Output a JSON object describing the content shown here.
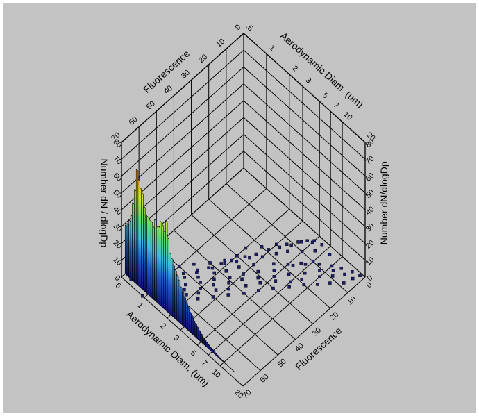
{
  "chart_data": {
    "type": "3d-bar-and-scatter",
    "axes": {
      "fluorescence": {
        "label": "Fluorescence",
        "ticks": [
          "0",
          "10",
          "20",
          "30",
          "40",
          "50",
          "60",
          "70"
        ],
        "range": [
          0,
          70
        ]
      },
      "aerodynamic_diameter": {
        "label_top": "Aerodynamic Diam. (um)",
        "label_bottom": "Aerodynamic Diam. (um)",
        "ticks": [
          ".5",
          "1",
          "2",
          "3",
          "5",
          "7",
          "10",
          "20"
        ],
        "range": [
          0.5,
          20
        ],
        "scale": "log"
      },
      "number_dn_dlogdp": {
        "label_left": "Number dN / dlogDp",
        "label_right": "Number dN/dlogDp",
        "ticks": [
          "0",
          "10",
          "20",
          "30",
          "40",
          "50",
          "60",
          "70",
          "80"
        ],
        "range": [
          0,
          80
        ]
      }
    },
    "histogram": {
      "description": "Size distribution at fluorescence = 0",
      "diameter_um": [
        0.5,
        0.53,
        0.56,
        0.59,
        0.62,
        0.66,
        0.7,
        0.74,
        0.78,
        0.82,
        0.87,
        0.92,
        0.97,
        1.03,
        1.09,
        1.15,
        1.22,
        1.29,
        1.36,
        1.44,
        1.52,
        1.61,
        1.7,
        1.8,
        1.9,
        2.01,
        2.13,
        2.25,
        2.38,
        2.52,
        2.67,
        2.82,
        2.98,
        3.15,
        3.33,
        3.53,
        3.73,
        3.94,
        4.17,
        4.41,
        4.66,
        4.93,
        5.21,
        5.51,
        5.83,
        6.16,
        6.52,
        6.89,
        7.29,
        7.7,
        8.15,
        8.62,
        9.11,
        9.63,
        10.2,
        10.8,
        11.4,
        12.0,
        12.7,
        13.5
      ],
      "counts": [
        29,
        31,
        34,
        38,
        46,
        55,
        68,
        63,
        59,
        57,
        50,
        46,
        46,
        45,
        45,
        43,
        48,
        45,
        46,
        50,
        49,
        46,
        53,
        44,
        36,
        34,
        31,
        29,
        27,
        25,
        22,
        20,
        18,
        16,
        14,
        12,
        11,
        9,
        8,
        7,
        6,
        5,
        4,
        3.5,
        3,
        2.5,
        2,
        1.8,
        1.5,
        1.2,
        1,
        0.8,
        0.6,
        0.5,
        0.4,
        0.3,
        0.2,
        0.2,
        0.1,
        0.1
      ]
    },
    "scatter": {
      "description": "Fluorescent particles (number = 0 plane)",
      "points": [
        [
          3,
          5
        ],
        [
          5,
          4.5
        ],
        [
          8,
          4
        ],
        [
          12,
          3.5
        ],
        [
          15,
          3
        ],
        [
          20,
          2.5
        ],
        [
          25,
          2
        ],
        [
          30,
          2
        ],
        [
          35,
          1.8
        ],
        [
          40,
          1.5
        ],
        [
          45,
          1.2
        ],
        [
          50,
          1
        ],
        [
          55,
          0.9
        ],
        [
          60,
          0.8
        ],
        [
          65,
          0.7
        ],
        [
          68,
          0.6
        ],
        [
          10,
          7
        ],
        [
          14,
          6
        ],
        [
          18,
          5
        ],
        [
          22,
          4
        ],
        [
          28,
          3
        ],
        [
          33,
          2.5
        ],
        [
          38,
          2.2
        ],
        [
          42,
          1.9
        ],
        [
          48,
          1.6
        ],
        [
          52,
          1.3
        ],
        [
          58,
          1.1
        ],
        [
          62,
          1
        ],
        [
          66,
          0.9
        ],
        [
          6,
          10
        ],
        [
          9,
          8
        ],
        [
          13,
          6.5
        ],
        [
          17,
          5.5
        ],
        [
          24,
          4.5
        ],
        [
          29,
          3.6
        ],
        [
          34,
          3
        ],
        [
          39,
          2.6
        ],
        [
          44,
          2.1
        ],
        [
          49,
          1.8
        ],
        [
          54,
          1.5
        ],
        [
          59,
          1.2
        ],
        [
          64,
          1.05
        ],
        [
          70,
          0.95
        ],
        [
          4,
          12
        ],
        [
          7,
          11
        ],
        [
          11,
          9
        ],
        [
          16,
          7.5
        ],
        [
          21,
          6
        ],
        [
          26,
          5
        ],
        [
          31,
          4
        ],
        [
          36,
          3.2
        ],
        [
          41,
          2.8
        ],
        [
          46,
          2.3
        ],
        [
          51,
          2
        ],
        [
          56,
          1.6
        ],
        [
          61,
          1.4
        ],
        [
          67,
          1.15
        ],
        [
          2,
          15
        ],
        [
          5,
          14
        ],
        [
          9,
          12
        ],
        [
          13,
          10
        ],
        [
          19,
          8
        ],
        [
          23,
          7
        ],
        [
          27,
          5.5
        ],
        [
          32,
          4.5
        ],
        [
          37,
          3.8
        ],
        [
          43,
          3.1
        ],
        [
          47,
          2.6
        ],
        [
          53,
          2.1
        ],
        [
          57,
          1.8
        ],
        [
          63,
          1.5
        ],
        [
          1,
          18
        ],
        [
          4,
          17
        ],
        [
          8,
          16
        ],
        [
          12,
          13
        ],
        [
          16,
          11
        ],
        [
          20,
          9
        ],
        [
          25,
          7.5
        ],
        [
          30,
          6
        ],
        [
          35,
          5
        ],
        [
          40,
          4.2
        ],
        [
          45,
          3.4
        ],
        [
          50,
          2.8
        ],
        [
          55,
          2.3
        ],
        [
          60,
          1.9
        ],
        [
          3,
          8
        ],
        [
          6,
          6
        ],
        [
          10,
          5
        ],
        [
          14,
          4
        ],
        [
          18,
          3.5
        ],
        [
          23,
          3
        ],
        [
          27,
          2.5
        ],
        [
          32,
          2.2
        ],
        [
          36,
          1.9
        ],
        [
          41,
          1.7
        ],
        [
          46,
          1.4
        ],
        [
          51,
          1.2
        ],
        [
          56,
          1.05
        ],
        [
          2,
          6
        ],
        [
          4,
          5
        ],
        [
          7,
          4.2
        ],
        [
          11,
          3.8
        ],
        [
          15,
          3.3
        ],
        [
          19,
          2.9
        ],
        [
          24,
          2.6
        ],
        [
          28,
          2.3
        ],
        [
          33,
          2
        ],
        [
          37,
          1.8
        ],
        [
          42,
          1.6
        ],
        [
          47,
          1.45
        ],
        [
          52,
          1.3
        ],
        [
          57,
          1.15
        ]
      ]
    }
  }
}
